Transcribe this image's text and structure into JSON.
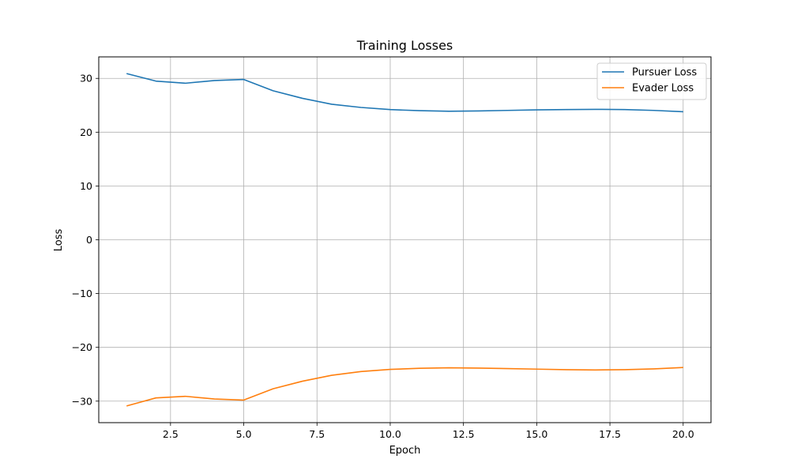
{
  "chart_data": {
    "type": "line",
    "title": "Training Losses",
    "xlabel": "Epoch",
    "ylabel": "Loss",
    "xlim": [
      0.05,
      20.95
    ],
    "ylim": [
      -34.0,
      34.0
    ],
    "x_ticks": [
      2.5,
      5.0,
      7.5,
      10.0,
      12.5,
      15.0,
      17.5,
      20.0
    ],
    "x_tick_labels": [
      "2.5",
      "5.0",
      "7.5",
      "10.0",
      "12.5",
      "15.0",
      "17.5",
      "20.0"
    ],
    "y_ticks": [
      -30,
      -20,
      -10,
      0,
      10,
      20,
      30
    ],
    "y_tick_labels": [
      "−30",
      "−20",
      "−10",
      "0",
      "10",
      "20",
      "30"
    ],
    "grid": true,
    "legend_position": "top-right",
    "x": [
      1,
      2,
      3,
      4,
      5,
      6,
      7,
      8,
      9,
      10,
      11,
      12,
      13,
      14,
      15,
      16,
      17,
      18,
      19,
      20
    ],
    "series": [
      {
        "name": "Pursuer Loss",
        "color": "#1f77b4",
        "values": [
          30.9,
          29.5,
          29.1,
          29.6,
          29.8,
          27.7,
          26.3,
          25.2,
          24.6,
          24.2,
          24.0,
          23.9,
          23.95,
          24.05,
          24.15,
          24.2,
          24.25,
          24.2,
          24.05,
          23.8
        ]
      },
      {
        "name": "Evader Loss",
        "color": "#ff7f0e",
        "values": [
          -30.9,
          -29.4,
          -29.1,
          -29.6,
          -29.8,
          -27.7,
          -26.3,
          -25.2,
          -24.5,
          -24.1,
          -23.9,
          -23.8,
          -23.85,
          -23.95,
          -24.05,
          -24.15,
          -24.2,
          -24.15,
          -24.0,
          -23.75
        ]
      }
    ]
  }
}
